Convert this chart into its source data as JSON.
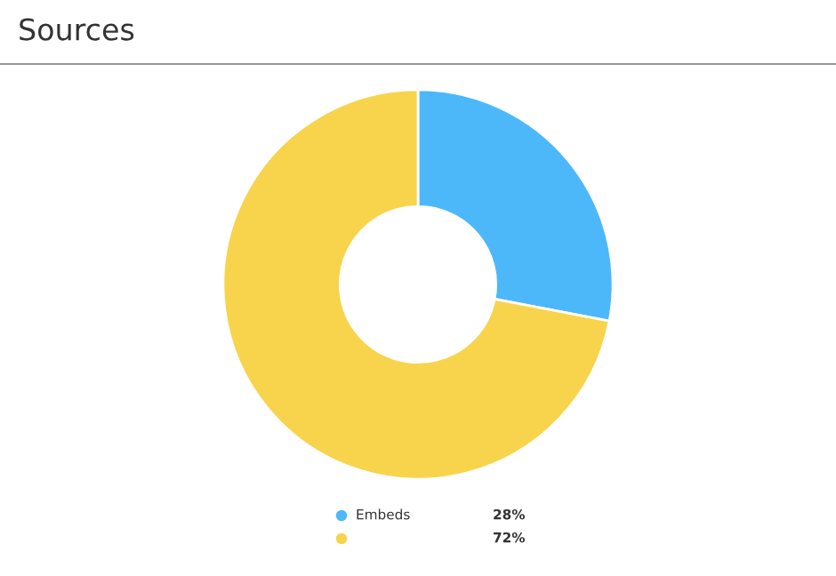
{
  "chart_data": {
    "type": "donut",
    "title": "Sources",
    "categories": [
      "Embeds",
      null
    ],
    "values": [
      28,
      72
    ],
    "colors": [
      "#4db8f9",
      "#f7d44c"
    ],
    "value_labels": [
      "28%",
      "72%"
    ],
    "legend": "bottom"
  }
}
